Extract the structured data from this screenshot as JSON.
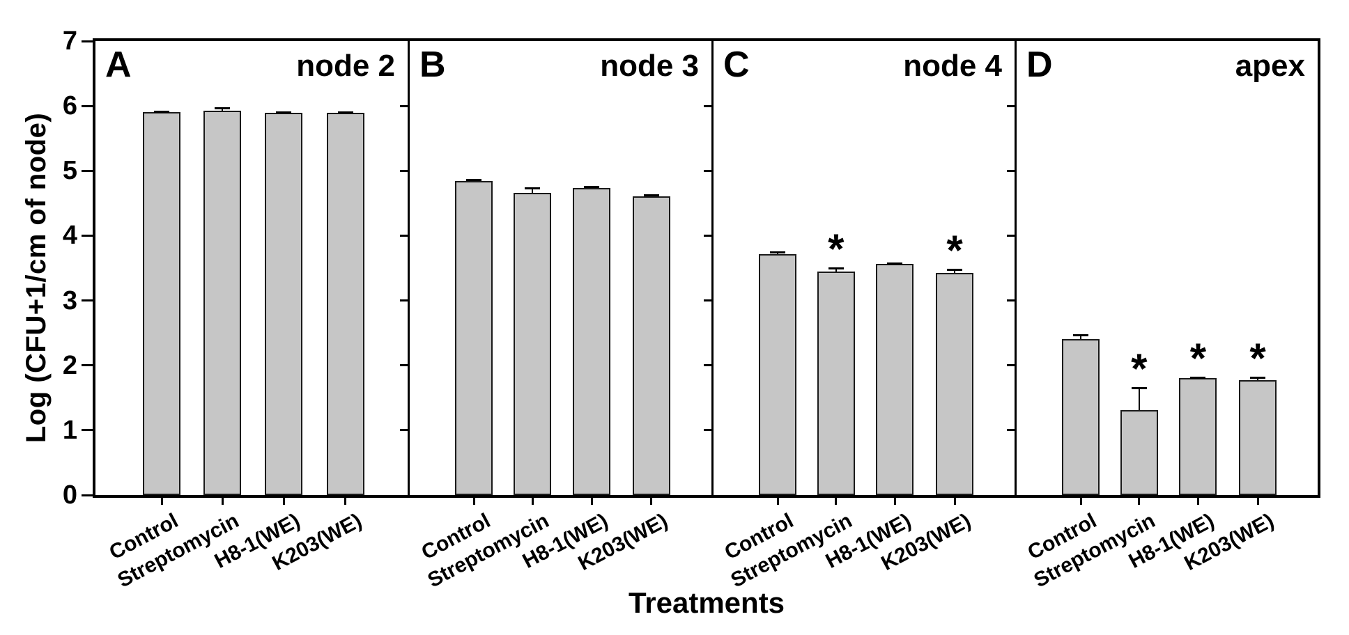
{
  "chart_data": {
    "type": "bar",
    "title": "",
    "xlabel": "Treatments",
    "ylabel": "Log (CFU+1/cm of node)",
    "ylim": [
      0,
      7
    ],
    "yticks": [
      0,
      1,
      2,
      3,
      4,
      5,
      6,
      7
    ],
    "grid": false,
    "bar_color": "#c6c6c6",
    "bar_border_color": "#1a1a1a",
    "significance_marker": "*",
    "categories": [
      "Control",
      "Streptomycin",
      "H8-1(WE)",
      "K203(WE)"
    ],
    "panels": [
      {
        "letter": "A",
        "title": "node 2",
        "values": [
          5.9,
          5.93,
          5.89,
          5.89
        ],
        "errors": [
          0.03,
          0.05,
          0.02,
          0.02
        ],
        "significant": [
          false,
          false,
          false,
          false
        ]
      },
      {
        "letter": "B",
        "title": "node 3",
        "values": [
          4.84,
          4.66,
          4.74,
          4.61
        ],
        "errors": [
          0.03,
          0.09,
          0.03,
          0.03
        ],
        "significant": [
          false,
          false,
          false,
          false
        ]
      },
      {
        "letter": "C",
        "title": "node 4",
        "values": [
          3.71,
          3.45,
          3.56,
          3.43
        ],
        "errors": [
          0.05,
          0.06,
          0.03,
          0.06
        ],
        "significant": [
          false,
          true,
          false,
          true
        ]
      },
      {
        "letter": "D",
        "title": "apex",
        "values": [
          2.41,
          1.31,
          1.8,
          1.77
        ],
        "errors": [
          0.07,
          0.35,
          0.03,
          0.05
        ],
        "significant": [
          false,
          true,
          true,
          true
        ]
      }
    ]
  }
}
